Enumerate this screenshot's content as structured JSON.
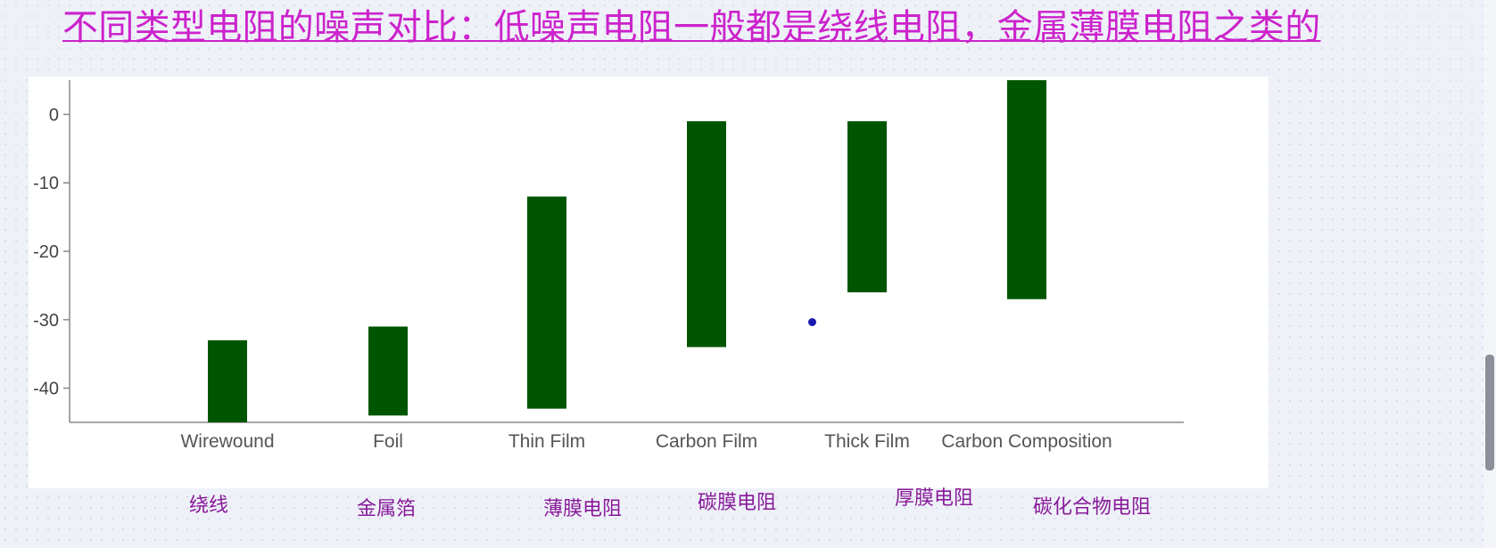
{
  "title": "不同类型电阻的噪声对比：低噪声电阻一般都是绕线电阻，金属薄膜电阻之类的",
  "cn_labels": [
    "绕线",
    "金属箔",
    "薄膜电阻",
    "碳膜电阻",
    "厚膜电阻",
    "碳化合物电阻"
  ],
  "colors": {
    "bar": "#005500",
    "title": "#cc22cc",
    "cn_label": "#881a99",
    "axis": "#888888"
  },
  "chart_data": {
    "type": "bar",
    "subtype": "floating-range",
    "categories": [
      "Wirewound",
      "Foil",
      "Thin Film",
      "Carbon Film",
      "Thick Film",
      "Carbon Composition"
    ],
    "ranges": [
      [
        -45,
        -33
      ],
      [
        -44,
        -31
      ],
      [
        -43,
        -12
      ],
      [
        -34,
        -1
      ],
      [
        -26,
        -1
      ],
      [
        -27,
        5
      ]
    ],
    "yticks": [
      0,
      -10,
      -20,
      -30,
      -40
    ],
    "ylim": [
      -45,
      5
    ],
    "xlabel": "",
    "ylabel": "",
    "title": "",
    "grid": false,
    "legend": "none"
  }
}
